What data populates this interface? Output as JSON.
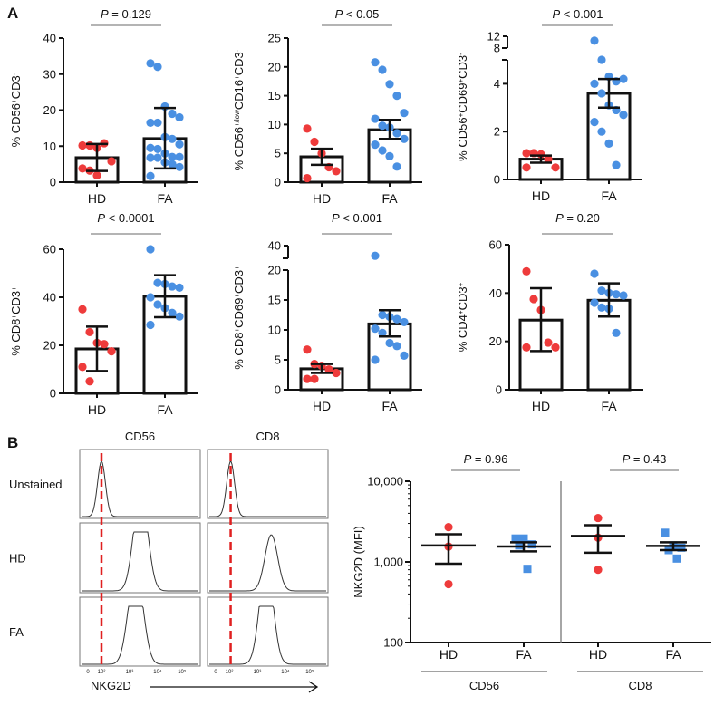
{
  "panel_letters": {
    "a": "A",
    "b": "B"
  },
  "colors": {
    "hd": "#ee3b3b",
    "fa": "#4a90e2",
    "axis": "#111111",
    "dash": "#e02020",
    "pline": "#888888"
  },
  "chart_data": [
    {
      "type": "bar",
      "id": "cd56",
      "ylabel": [
        [
          "% CD56",
          ""
        ],
        [
          "+",
          "sup"
        ],
        [
          "CD3",
          ""
        ],
        [
          "-",
          "sup"
        ]
      ],
      "p": {
        "italic": "P",
        "rest": " = 0.129"
      },
      "ylim": [
        0,
        40
      ],
      "ticks": [
        0,
        10,
        20,
        30,
        40
      ],
      "categories": [
        "HD",
        "FA"
      ],
      "series": [
        {
          "name": "HD",
          "mean": 6.8,
          "err": [
            3.1,
            10.6
          ],
          "points": [
            10.2,
            10.2,
            9.5,
            10.8,
            5.8,
            3.8,
            3.2,
            1.9
          ]
        },
        {
          "name": "FA",
          "mean": 12.1,
          "err": [
            3.8,
            20.6
          ],
          "points": [
            33,
            32,
            21,
            19,
            18,
            16.5,
            16.5,
            12.5,
            12,
            10.5,
            9.5,
            9.2,
            8,
            7,
            7,
            6.8,
            6.8,
            5.5,
            5,
            4.2,
            1.7
          ]
        }
      ]
    },
    {
      "type": "bar",
      "id": "cd56low",
      "ylabel": [
        [
          "% CD56",
          ""
        ],
        [
          "+/low",
          "sup"
        ],
        [
          "CD16",
          ""
        ],
        [
          "+",
          "sup"
        ],
        [
          "CD3",
          ""
        ],
        [
          "-",
          "sup"
        ]
      ],
      "p": {
        "italic": "P",
        "rest": " < 0.05"
      },
      "ylim": [
        0,
        25
      ],
      "ticks": [
        0,
        5,
        10,
        15,
        20,
        25
      ],
      "categories": [
        "HD",
        "FA"
      ],
      "series": [
        {
          "name": "HD",
          "mean": 4.4,
          "err": [
            3.0,
            5.8
          ],
          "points": [
            9.3,
            7,
            5,
            2.6,
            1.9,
            0.7
          ]
        },
        {
          "name": "FA",
          "mean": 9.1,
          "err": [
            7.5,
            10.8
          ],
          "points": [
            20.8,
            19.5,
            17,
            15,
            12,
            11,
            9.8,
            9.5,
            8.5,
            7.5,
            6.5,
            5.5,
            4.5,
            2.7
          ]
        }
      ]
    },
    {
      "type": "bar",
      "id": "cd56cd69",
      "ylabel": [
        [
          "% CD56",
          ""
        ],
        [
          "+",
          "sup"
        ],
        [
          "CD69",
          ""
        ],
        [
          "+",
          "sup"
        ],
        [
          "CD3",
          ""
        ],
        [
          "-",
          "sup"
        ]
      ],
      "p": {
        "italic": "P",
        "rest": " < 0.001"
      },
      "ylim": [
        0,
        12
      ],
      "axis_break": [
        5,
        8
      ],
      "ticks": [
        0,
        2,
        4,
        8,
        12
      ],
      "categories": [
        "HD",
        "FA"
      ],
      "series": [
        {
          "name": "HD",
          "mean": 0.85,
          "err": [
            0.7,
            1.0
          ],
          "points": [
            1.1,
            1.1,
            1.05,
            0.85,
            0.5,
            0.5
          ]
        },
        {
          "name": "FA",
          "mean": 3.6,
          "err": [
            3.0,
            4.2
          ],
          "points": [
            10.5,
            5.0,
            4.3,
            4.1,
            4.2,
            4.0,
            3.6,
            3.1,
            2.9,
            2.7,
            2.4,
            2.0,
            1.5,
            0.6
          ]
        }
      ]
    },
    {
      "type": "bar",
      "id": "cd8",
      "ylabel": [
        [
          "% CD8",
          ""
        ],
        [
          "+",
          "sup"
        ],
        [
          "CD3",
          ""
        ],
        [
          "+",
          "sup"
        ]
      ],
      "p": {
        "italic": "P",
        "rest": " < 0.0001"
      },
      "ylim": [
        0,
        60
      ],
      "ticks": [
        0,
        20,
        40,
        60
      ],
      "categories": [
        "HD",
        "FA"
      ],
      "series": [
        {
          "name": "HD",
          "mean": 18.5,
          "err": [
            9.3,
            27.8
          ],
          "points": [
            35,
            25.5,
            21,
            20.5,
            17.5,
            11,
            5
          ]
        },
        {
          "name": "FA",
          "mean": 40.4,
          "err": [
            31.7,
            49.2
          ],
          "points": [
            60,
            46,
            45.5,
            44.5,
            44,
            40,
            37,
            35.5,
            33.5,
            32,
            28.5
          ]
        }
      ]
    },
    {
      "type": "bar",
      "id": "cd8cd69",
      "ylabel": [
        [
          "% CD8",
          ""
        ],
        [
          "+",
          "sup"
        ],
        [
          "CD69",
          ""
        ],
        [
          "+",
          "sup"
        ],
        [
          "CD3",
          ""
        ],
        [
          "+",
          "sup"
        ]
      ],
      "p": {
        "italic": "P",
        "rest": " < 0.001"
      },
      "ylim": [
        0,
        40
      ],
      "axis_break": [
        20,
        30
      ],
      "ticks": [
        0,
        5,
        10,
        15,
        20,
        40
      ],
      "categories": [
        "HD",
        "FA"
      ],
      "series": [
        {
          "name": "HD",
          "mean": 3.5,
          "err": [
            2.8,
            4.3
          ],
          "points": [
            6.7,
            4.3,
            4.0,
            3.4,
            2.8,
            1.8,
            1.8
          ]
        },
        {
          "name": "FA",
          "mean": 11.0,
          "err": [
            8.9,
            13.3
          ],
          "points": [
            32,
            12.5,
            12.2,
            11.8,
            11.3,
            10.2,
            9.5,
            7.8,
            7.3,
            5.7,
            5.0
          ]
        }
      ]
    },
    {
      "type": "bar",
      "id": "cd4",
      "ylabel": [
        [
          "% CD4",
          ""
        ],
        [
          "+",
          "sup"
        ],
        [
          "CD3",
          ""
        ],
        [
          "+",
          "sup"
        ]
      ],
      "p": {
        "italic": "P",
        "rest": " = 0.20"
      },
      "ylim": [
        0,
        60
      ],
      "ticks": [
        0,
        20,
        40,
        60
      ],
      "categories": [
        "HD",
        "FA"
      ],
      "series": [
        {
          "name": "HD",
          "mean": 28.8,
          "err": [
            16,
            42
          ],
          "points": [
            49,
            37.5,
            33,
            19.5,
            17.5,
            17.5
          ]
        },
        {
          "name": "FA",
          "mean": 37,
          "err": [
            30.3,
            44
          ],
          "points": [
            48,
            41,
            40,
            39.5,
            39,
            36,
            34,
            33.5,
            23.5
          ]
        }
      ]
    },
    {
      "type": "histogram",
      "id": "flow",
      "columns": [
        "CD56",
        "CD8"
      ],
      "rows": [
        "Unstained",
        "HD",
        "FA"
      ],
      "xlabel": "NKG2D",
      "xscale": "log",
      "tick_labels": [
        "0",
        "10²",
        "10³",
        "10⁴",
        "10⁵"
      ],
      "threshold_log": [
        2.0,
        2.05
      ],
      "peaks_log": [
        [
          [
            2.0
          ],
          [
            3.3,
            3.5
          ],
          [
            3.1,
            3.35
          ]
        ],
        [
          [
            2.05
          ],
          [
            3.5
          ],
          [
            3.25,
            3.4
          ]
        ]
      ]
    },
    {
      "type": "scatter",
      "id": "mfi",
      "ylabel": "NKG2D (MFI)",
      "yscale": "log",
      "ylim": [
        100,
        10000
      ],
      "tick_labels": [
        "100",
        "1,000",
        "10,000"
      ],
      "ticks": [
        100,
        1000,
        10000
      ],
      "groups": [
        {
          "name": "CD56",
          "p": {
            "italic": "P",
            "rest": " = 0.96"
          },
          "series": [
            {
              "name": "HD",
              "marker": "circle",
              "mean": 1600,
              "err": [
                950,
                2200
              ],
              "points": [
                2700,
                1550,
                530
              ]
            },
            {
              "name": "FA",
              "marker": "square",
              "mean": 1550,
              "err": [
                1350,
                1750
              ],
              "points": [
                1950,
                1950,
                1650,
                1600,
                820
              ]
            }
          ]
        },
        {
          "name": "CD8",
          "p": {
            "italic": "P",
            "rest": " = 0.43"
          },
          "series": [
            {
              "name": "HD",
              "marker": "circle",
              "mean": 2100,
              "err": [
                1300,
                2850
              ],
              "points": [
                3500,
                2000,
                800
              ]
            },
            {
              "name": "FA",
              "marker": "square",
              "mean": 1580,
              "err": [
                1400,
                1750
              ],
              "points": [
                2300,
                1600,
                1500,
                1400,
                1100
              ]
            }
          ]
        }
      ]
    }
  ]
}
